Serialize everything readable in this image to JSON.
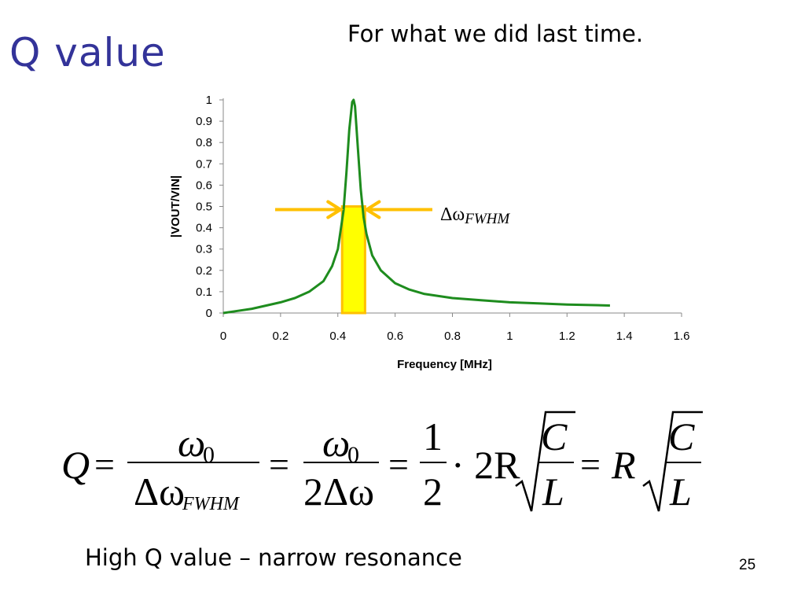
{
  "slide": {
    "title": "Q value",
    "subtitle": "For what we did last time.",
    "caption": "High Q value – narrow resonance",
    "page_number": "25"
  },
  "annotation": {
    "label_delta": "Δω",
    "label_subscript": "FWHM",
    "arrow_color": "#FFC000",
    "band_fill": "#FFFF00",
    "band_stroke": "#FFC000"
  },
  "equation": {
    "lhs": "Q",
    "eq": "=",
    "omega0": "ω",
    "zero": "0",
    "delta_omega": "Δω",
    "fwhm": "FWHM",
    "two_delta_omega": "2Δω",
    "one": "1",
    "two": "2",
    "dot_2R": "· 2R",
    "R": "R",
    "C": "C",
    "L": "L"
  },
  "chart_data": {
    "type": "line",
    "title": "",
    "xlabel": "Frequency [MHz]",
    "ylabel": "|VOUT/VIN|",
    "xlim": [
      0,
      1.6
    ],
    "ylim": [
      0,
      1
    ],
    "x_ticks": [
      "0",
      "0.2",
      "0.4",
      "0.6",
      "0.8",
      "1",
      "1.2",
      "1.4",
      "1.6"
    ],
    "y_ticks": [
      "0",
      "0.1",
      "0.2",
      "0.3",
      "0.4",
      "0.5",
      "0.6",
      "0.7",
      "0.8",
      "0.9",
      "1"
    ],
    "grid": false,
    "line_color": "#1E8C1E",
    "series": [
      {
        "x": [
          0,
          0.05,
          0.1,
          0.15,
          0.2,
          0.25,
          0.3,
          0.35,
          0.38,
          0.4,
          0.42,
          0.43,
          0.44,
          0.45,
          0.455,
          0.46,
          0.47,
          0.48,
          0.49,
          0.5,
          0.52,
          0.55,
          0.6,
          0.65,
          0.7,
          0.8,
          0.9,
          1.0,
          1.1,
          1.2,
          1.3,
          1.35
        ],
        "y": [
          0,
          0.01,
          0.02,
          0.035,
          0.05,
          0.07,
          0.1,
          0.15,
          0.22,
          0.3,
          0.48,
          0.66,
          0.86,
          0.99,
          1.0,
          0.97,
          0.77,
          0.58,
          0.45,
          0.37,
          0.27,
          0.2,
          0.14,
          0.11,
          0.09,
          0.07,
          0.06,
          0.05,
          0.045,
          0.04,
          0.037,
          0.035
        ]
      }
    ],
    "fwhm_band": {
      "x_start": 0.415,
      "x_end": 0.495,
      "y": 0.5
    }
  }
}
